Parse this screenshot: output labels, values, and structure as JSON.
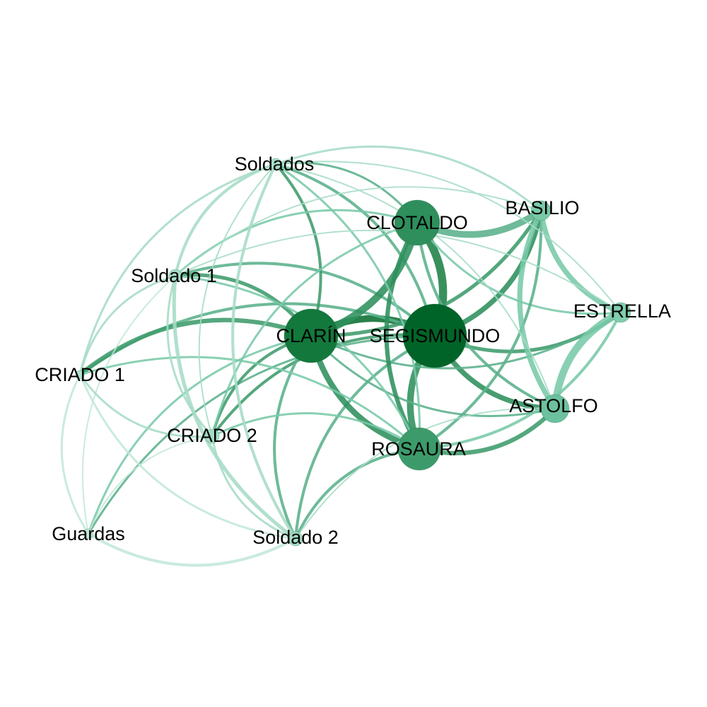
{
  "diagram": {
    "type": "network-graph",
    "nodes": [
      {
        "id": "segismundo",
        "label": "SEGISMUNDO",
        "weight": 1.0,
        "color": "#006428"
      },
      {
        "id": "clarin",
        "label": "CLARÍN",
        "weight": 0.8,
        "color": "#13783b"
      },
      {
        "id": "clotaldo",
        "label": "CLOTALDO",
        "weight": 0.55,
        "color": "#2e8f5c"
      },
      {
        "id": "rosaura",
        "label": "ROSAURA",
        "weight": 0.5,
        "color": "#3d9b6b"
      },
      {
        "id": "basilio",
        "label": "BASILIO",
        "weight": 0.2,
        "color": "#79c9a9"
      },
      {
        "id": "estrella",
        "label": "ESTRELLA",
        "weight": 0.2,
        "color": "#80cdae"
      },
      {
        "id": "astolfo",
        "label": "ASTOLFO",
        "weight": 0.3,
        "color": "#6cc19f"
      },
      {
        "id": "soldados",
        "label": "Soldados",
        "weight": 0.1,
        "color": "#a6dcc6"
      },
      {
        "id": "soldado1",
        "label": "Soldado 1",
        "weight": 0.1,
        "color": "#a6dcc6"
      },
      {
        "id": "criado1",
        "label": "CRIADO 1",
        "weight": 0.1,
        "color": "#b2e2cf"
      },
      {
        "id": "criado2",
        "label": "CRIADO 2",
        "weight": 0.1,
        "color": "#a6dcc6"
      },
      {
        "id": "guardas",
        "label": "Guardas",
        "weight": 0.1,
        "color": "#c2e8d8"
      },
      {
        "id": "soldado2",
        "label": "Soldado 2",
        "weight": 0.1,
        "color": "#a6dcc6"
      }
    ],
    "edges": [
      {
        "source": "segismundo",
        "target": "clarin",
        "weight": 8,
        "color": "#0b6e31"
      },
      {
        "source": "segismundo",
        "target": "clotaldo",
        "weight": 10,
        "color": "#1f8147"
      },
      {
        "source": "segismundo",
        "target": "rosaura",
        "weight": 8,
        "color": "#2e8f5c"
      },
      {
        "source": "segismundo",
        "target": "basilio",
        "weight": 6,
        "color": "#2e8f5c"
      },
      {
        "source": "segismundo",
        "target": "estrella",
        "weight": 4,
        "color": "#3d9b6b"
      },
      {
        "source": "segismundo",
        "target": "astolfo",
        "weight": 6,
        "color": "#2e8f5c"
      },
      {
        "source": "segismundo",
        "target": "soldados",
        "weight": 3,
        "color": "#5ab18b"
      },
      {
        "source": "segismundo",
        "target": "soldado1",
        "weight": 3,
        "color": "#5ab18b"
      },
      {
        "source": "segismundo",
        "target": "criado1",
        "weight": 3,
        "color": "#5ab18b"
      },
      {
        "source": "segismundo",
        "target": "criado2",
        "weight": 3,
        "color": "#3d9b6b"
      },
      {
        "source": "segismundo",
        "target": "guardas",
        "weight": 2,
        "color": "#5ab18b"
      },
      {
        "source": "segismundo",
        "target": "soldado2",
        "weight": 3,
        "color": "#5ab18b"
      },
      {
        "source": "clarin",
        "target": "clotaldo",
        "weight": 9,
        "color": "#2e8f5c"
      },
      {
        "source": "clarin",
        "target": "rosaura",
        "weight": 7,
        "color": "#2e8f5c"
      },
      {
        "source": "clarin",
        "target": "basilio",
        "weight": 4,
        "color": "#3d9b6b"
      },
      {
        "source": "clarin",
        "target": "estrella",
        "weight": 2,
        "color": "#5ab18b"
      },
      {
        "source": "clarin",
        "target": "astolfo",
        "weight": 2,
        "color": "#5ab18b"
      },
      {
        "source": "clarin",
        "target": "soldados",
        "weight": 3,
        "color": "#3d9b6b"
      },
      {
        "source": "clarin",
        "target": "soldado1",
        "weight": 4,
        "color": "#3d9b6b"
      },
      {
        "source": "clarin",
        "target": "criado1",
        "weight": 5,
        "color": "#3d9b6b"
      },
      {
        "source": "clarin",
        "target": "criado2",
        "weight": 3,
        "color": "#3d9b6b"
      },
      {
        "source": "clarin",
        "target": "guardas",
        "weight": 2,
        "color": "#79c9a9"
      },
      {
        "source": "clarin",
        "target": "soldado2",
        "weight": 3,
        "color": "#5ab18b"
      },
      {
        "source": "clotaldo",
        "target": "rosaura",
        "weight": 5,
        "color": "#2e8f5c"
      },
      {
        "source": "clotaldo",
        "target": "basilio",
        "weight": 8,
        "color": "#5ab18b"
      },
      {
        "source": "clotaldo",
        "target": "estrella",
        "weight": 2,
        "color": "#79c9a9"
      },
      {
        "source": "clotaldo",
        "target": "astolfo",
        "weight": 3,
        "color": "#5ab18b"
      },
      {
        "source": "clotaldo",
        "target": "soldados",
        "weight": 2,
        "color": "#5ab18b"
      },
      {
        "source": "clotaldo",
        "target": "soldado1",
        "weight": 2,
        "color": "#79c9a9"
      },
      {
        "source": "clotaldo",
        "target": "criado2",
        "weight": 2,
        "color": "#79c9a9"
      },
      {
        "source": "rosaura",
        "target": "basilio",
        "weight": 3,
        "color": "#5ab18b"
      },
      {
        "source": "rosaura",
        "target": "estrella",
        "weight": 3,
        "color": "#79c9a9"
      },
      {
        "source": "rosaura",
        "target": "astolfo",
        "weight": 5,
        "color": "#3d9b6b"
      },
      {
        "source": "rosaura",
        "target": "soldados",
        "weight": 2,
        "color": "#79c9a9"
      },
      {
        "source": "rosaura",
        "target": "soldado1",
        "weight": 2,
        "color": "#79c9a9"
      },
      {
        "source": "rosaura",
        "target": "criado1",
        "weight": 2,
        "color": "#79c9a9"
      },
      {
        "source": "rosaura",
        "target": "criado2",
        "weight": 2,
        "color": "#79c9a9"
      },
      {
        "source": "rosaura",
        "target": "soldado2",
        "weight": 3,
        "color": "#5ab18b"
      },
      {
        "source": "basilio",
        "target": "estrella",
        "weight": 6,
        "color": "#79c9a9"
      },
      {
        "source": "basilio",
        "target": "astolfo",
        "weight": 6,
        "color": "#79c9a9"
      },
      {
        "source": "basilio",
        "target": "soldados",
        "weight": 2,
        "color": "#a6dcc6"
      },
      {
        "source": "basilio",
        "target": "soldado1",
        "weight": 1,
        "color": "#a6dcc6"
      },
      {
        "source": "estrella",
        "target": "astolfo",
        "weight": 9,
        "color": "#79c9a9"
      },
      {
        "source": "estrella",
        "target": "soldados",
        "weight": 1,
        "color": "#a6dcc6"
      },
      {
        "source": "estrella",
        "target": "soldado1",
        "weight": 1,
        "color": "#a6dcc6"
      },
      {
        "source": "astolfo",
        "target": "soldado2",
        "weight": 1,
        "color": "#a6dcc6"
      },
      {
        "source": "astolfo",
        "target": "soldados",
        "weight": 1,
        "color": "#a6dcc6"
      },
      {
        "source": "soldados",
        "target": "soldado1",
        "weight": 3,
        "color": "#a6dcc6"
      },
      {
        "source": "soldados",
        "target": "criado1",
        "weight": 2,
        "color": "#a6dcc6"
      },
      {
        "source": "soldados",
        "target": "soldado2",
        "weight": 3,
        "color": "#a6dcc6"
      },
      {
        "source": "soldados",
        "target": "criado2",
        "weight": 1,
        "color": "#a6dcc6"
      },
      {
        "source": "soldado1",
        "target": "criado1",
        "weight": 2,
        "color": "#a6dcc6"
      },
      {
        "source": "soldado1",
        "target": "criado2",
        "weight": 2,
        "color": "#a6dcc6"
      },
      {
        "source": "soldado1",
        "target": "soldado2",
        "weight": 4,
        "color": "#a6dcc6"
      },
      {
        "source": "soldado1",
        "target": "guardas",
        "weight": 1,
        "color": "#c2e8d8"
      },
      {
        "source": "criado1",
        "target": "criado2",
        "weight": 2,
        "color": "#a6dcc6"
      },
      {
        "source": "criado1",
        "target": "guardas",
        "weight": 2,
        "color": "#c2e8d8"
      },
      {
        "source": "criado1",
        "target": "soldado2",
        "weight": 2,
        "color": "#c2e8d8"
      },
      {
        "source": "criado2",
        "target": "guardas",
        "weight": 1,
        "color": "#c2e8d8"
      },
      {
        "source": "criado2",
        "target": "soldado2",
        "weight": 2,
        "color": "#a6dcc6"
      },
      {
        "source": "guardas",
        "target": "soldado2",
        "weight": 3,
        "color": "#c2e8d8"
      }
    ]
  }
}
